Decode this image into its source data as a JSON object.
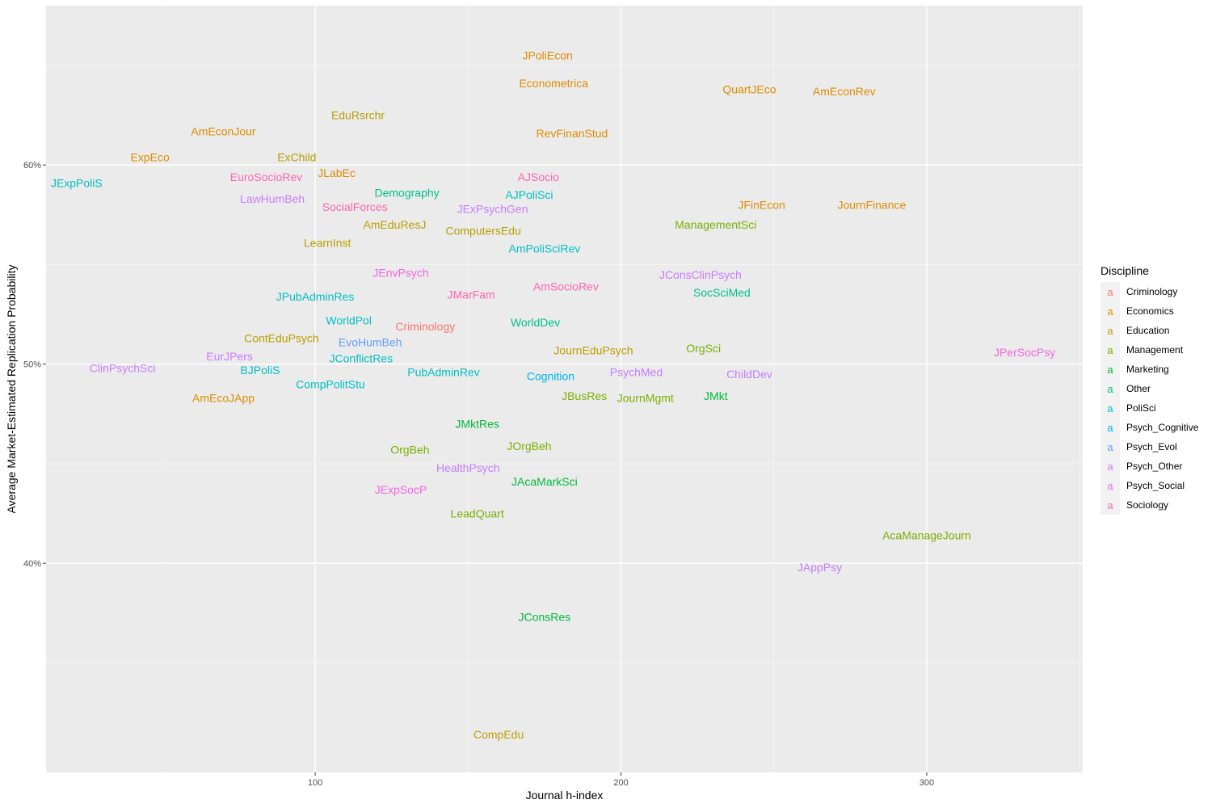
{
  "chart_data": {
    "type": "scatter",
    "title": "",
    "xlabel": "Journal h-index",
    "ylabel": "Average Market-Estimated Replication Probability",
    "xlim": [
      12,
      351
    ],
    "ylim": [
      0.295,
      0.68
    ],
    "x_ticks": [
      100,
      200,
      300
    ],
    "x_tick_labels": [
      "100",
      "200",
      "300"
    ],
    "y_ticks": [
      0.4,
      0.5,
      0.6
    ],
    "y_tick_labels": [
      "40%",
      "50%",
      "60%"
    ],
    "grid": true,
    "legend": {
      "title": "Discipline",
      "position": "right",
      "key_glyph": "a",
      "entries": [
        {
          "name": "Criminology",
          "color": "#F8766D"
        },
        {
          "name": "Economics",
          "color": "#DE8C00"
        },
        {
          "name": "Education",
          "color": "#B79F00"
        },
        {
          "name": "Management",
          "color": "#7CAE00"
        },
        {
          "name": "Marketing",
          "color": "#00BA38"
        },
        {
          "name": "Other",
          "color": "#00C08B"
        },
        {
          "name": "PoliSci",
          "color": "#00BFC4"
        },
        {
          "name": "Psych_Cognitive",
          "color": "#00B4F0"
        },
        {
          "name": "Psych_Evol",
          "color": "#619CFF"
        },
        {
          "name": "Psych_Other",
          "color": "#C77CFF"
        },
        {
          "name": "Psych_Social",
          "color": "#F564E3"
        },
        {
          "name": "Sociology",
          "color": "#FF64B0"
        }
      ]
    },
    "points": [
      {
        "label": "JPoliEcon",
        "x": 176,
        "y": 0.655,
        "discipline": "Economics"
      },
      {
        "label": "Econometrica",
        "x": 178,
        "y": 0.641,
        "discipline": "Economics"
      },
      {
        "label": "QuartJEco",
        "x": 242,
        "y": 0.638,
        "discipline": "Economics"
      },
      {
        "label": "AmEconRev",
        "x": 273,
        "y": 0.637,
        "discipline": "Economics"
      },
      {
        "label": "EduRsrchr",
        "x": 114,
        "y": 0.625,
        "discipline": "Education"
      },
      {
        "label": "AmEconJour",
        "x": 70,
        "y": 0.617,
        "discipline": "Economics"
      },
      {
        "label": "RevFinanStud",
        "x": 184,
        "y": 0.616,
        "discipline": "Economics"
      },
      {
        "label": "ExpEco",
        "x": 46,
        "y": 0.604,
        "discipline": "Economics"
      },
      {
        "label": "ExChild",
        "x": 94,
        "y": 0.604,
        "discipline": "Education"
      },
      {
        "label": "JLabEc",
        "x": 107,
        "y": 0.596,
        "discipline": "Economics"
      },
      {
        "label": "EuroSocioRev",
        "x": 84,
        "y": 0.594,
        "discipline": "Sociology"
      },
      {
        "label": "AJSocio",
        "x": 173,
        "y": 0.594,
        "discipline": "Sociology"
      },
      {
        "label": "JExpPoliS",
        "x": 22,
        "y": 0.591,
        "discipline": "PoliSci"
      },
      {
        "label": "Demography",
        "x": 130,
        "y": 0.586,
        "discipline": "Other"
      },
      {
        "label": "AJPoliSci",
        "x": 170,
        "y": 0.585,
        "discipline": "PoliSci"
      },
      {
        "label": "LawHumBeh",
        "x": 86,
        "y": 0.583,
        "discipline": "Psych_Other"
      },
      {
        "label": "SocialForces",
        "x": 113,
        "y": 0.579,
        "discipline": "Sociology"
      },
      {
        "label": "JExPsychGen",
        "x": 158,
        "y": 0.578,
        "discipline": "Psych_Other"
      },
      {
        "label": "JFinEcon",
        "x": 246,
        "y": 0.58,
        "discipline": "Economics"
      },
      {
        "label": "JournFinance",
        "x": 282,
        "y": 0.58,
        "discipline": "Economics"
      },
      {
        "label": "AmEduResJ",
        "x": 126,
        "y": 0.57,
        "discipline": "Education"
      },
      {
        "label": "ManagementSci",
        "x": 231,
        "y": 0.57,
        "discipline": "Management"
      },
      {
        "label": "ComputersEdu",
        "x": 155,
        "y": 0.567,
        "discipline": "Education"
      },
      {
        "label": "LearnInst",
        "x": 104,
        "y": 0.561,
        "discipline": "Education"
      },
      {
        "label": "AmPoliSciRev",
        "x": 175,
        "y": 0.558,
        "discipline": "PoliSci"
      },
      {
        "label": "JEnvPsych",
        "x": 128,
        "y": 0.546,
        "discipline": "Psych_Social"
      },
      {
        "label": "JConsClinPsych",
        "x": 226,
        "y": 0.545,
        "discipline": "Psych_Other"
      },
      {
        "label": "AmSocioRev",
        "x": 182,
        "y": 0.539,
        "discipline": "Sociology"
      },
      {
        "label": "SocSciMed",
        "x": 233,
        "y": 0.536,
        "discipline": "Other"
      },
      {
        "label": "JMarFam",
        "x": 151,
        "y": 0.535,
        "discipline": "Sociology"
      },
      {
        "label": "JPubAdminRes",
        "x": 100,
        "y": 0.534,
        "discipline": "PoliSci"
      },
      {
        "label": "WorldPol",
        "x": 111,
        "y": 0.522,
        "discipline": "PoliSci"
      },
      {
        "label": "WorldDev",
        "x": 172,
        "y": 0.521,
        "discipline": "Other"
      },
      {
        "label": "Criminology",
        "x": 136,
        "y": 0.519,
        "discipline": "Criminology"
      },
      {
        "label": "ContEduPsych",
        "x": 89,
        "y": 0.513,
        "discipline": "Education"
      },
      {
        "label": "EvoHumBeh",
        "x": 118,
        "y": 0.511,
        "discipline": "Psych_Evol"
      },
      {
        "label": "JournEduPsych",
        "x": 191,
        "y": 0.507,
        "discipline": "Education"
      },
      {
        "label": "OrgSci",
        "x": 227,
        "y": 0.508,
        "discipline": "Management"
      },
      {
        "label": "JPerSocPsy",
        "x": 332,
        "y": 0.506,
        "discipline": "Psych_Social"
      },
      {
        "label": "EurJPers",
        "x": 72,
        "y": 0.504,
        "discipline": "Psych_Other"
      },
      {
        "label": "JConflictRes",
        "x": 115,
        "y": 0.503,
        "discipline": "PoliSci"
      },
      {
        "label": "ClinPsychSci",
        "x": 37,
        "y": 0.498,
        "discipline": "Psych_Other"
      },
      {
        "label": "BJPoliS",
        "x": 82,
        "y": 0.497,
        "discipline": "PoliSci"
      },
      {
        "label": "PubAdminRev",
        "x": 142,
        "y": 0.496,
        "discipline": "PoliSci"
      },
      {
        "label": "PsychMed",
        "x": 205,
        "y": 0.496,
        "discipline": "Psych_Other"
      },
      {
        "label": "Cognition",
        "x": 177,
        "y": 0.494,
        "discipline": "Psych_Cognitive"
      },
      {
        "label": "ChildDev",
        "x": 242,
        "y": 0.495,
        "discipline": "Psych_Other"
      },
      {
        "label": "CompPolitStu",
        "x": 105,
        "y": 0.49,
        "discipline": "PoliSci"
      },
      {
        "label": "JBusRes",
        "x": 188,
        "y": 0.484,
        "discipline": "Management"
      },
      {
        "label": "JournMgmt",
        "x": 208,
        "y": 0.483,
        "discipline": "Management"
      },
      {
        "label": "JMkt",
        "x": 231,
        "y": 0.484,
        "discipline": "Marketing"
      },
      {
        "label": "AmEcoJApp",
        "x": 70,
        "y": 0.483,
        "discipline": "Economics"
      },
      {
        "label": "JMktRes",
        "x": 153,
        "y": 0.47,
        "discipline": "Marketing"
      },
      {
        "label": "JOrgBeh",
        "x": 170,
        "y": 0.459,
        "discipline": "Management"
      },
      {
        "label": "OrgBeh",
        "x": 131,
        "y": 0.457,
        "discipline": "Management"
      },
      {
        "label": "HealthPsych",
        "x": 150,
        "y": 0.448,
        "discipline": "Psych_Other"
      },
      {
        "label": "JAcaMarkSci",
        "x": 175,
        "y": 0.441,
        "discipline": "Marketing"
      },
      {
        "label": "JExpSocP",
        "x": 128,
        "y": 0.437,
        "discipline": "Psych_Social"
      },
      {
        "label": "LeadQuart",
        "x": 153,
        "y": 0.425,
        "discipline": "Management"
      },
      {
        "label": "AcaManageJourn",
        "x": 300,
        "y": 0.414,
        "discipline": "Management"
      },
      {
        "label": "JAppPsy",
        "x": 265,
        "y": 0.398,
        "discipline": "Psych_Other"
      },
      {
        "label": "JConsRes",
        "x": 175,
        "y": 0.373,
        "discipline": "Marketing"
      },
      {
        "label": "CompEdu",
        "x": 160,
        "y": 0.314,
        "discipline": "Education"
      }
    ]
  }
}
